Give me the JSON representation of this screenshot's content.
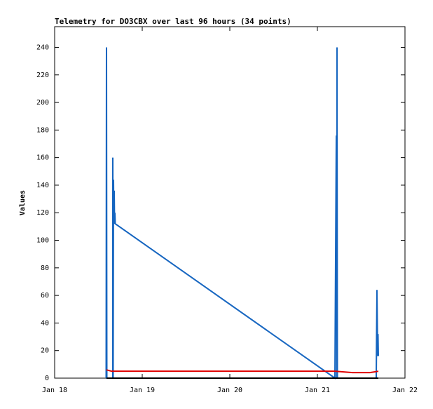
{
  "chart_data": {
    "type": "line",
    "title": "Telemetry for DO3CBX over last 96 hours (34 points)",
    "y_label": "Values",
    "xlim": [
      0,
      4
    ],
    "xticks": [
      {
        "value": 0,
        "label": "Jan 18"
      },
      {
        "value": 1,
        "label": "Jan 19"
      },
      {
        "value": 2,
        "label": "Jan 20"
      },
      {
        "value": 3,
        "label": "Jan 21"
      },
      {
        "value": 4,
        "label": "Jan 22"
      }
    ],
    "ylim": [
      0,
      255
    ],
    "yticks": [
      0,
      20,
      40,
      60,
      80,
      100,
      120,
      140,
      160,
      180,
      200,
      220,
      240
    ],
    "grid": false,
    "series": [
      {
        "color": "#1565c0",
        "x": [
          0.588,
          0.592,
          0.596,
          0.664,
          0.664,
          0.668,
          0.672,
          0.676,
          0.68,
          0.684,
          0.688,
          0.692,
          3.2,
          3.216,
          3.22,
          3.224,
          3.228,
          3.672,
          3.68,
          3.688,
          3.692,
          3.696
        ],
        "values": [
          0,
          240,
          0,
          0,
          160,
          0,
          144,
          112,
          136,
          112,
          120,
          112,
          0,
          176,
          0,
          240,
          0,
          0,
          64,
          16,
          32,
          16
        ]
      },
      {
        "color": "#e00000",
        "x": [
          0.592,
          0.65,
          3.2,
          3.4,
          3.6,
          3.696
        ],
        "values": [
          6,
          5,
          5,
          4,
          4,
          5
        ]
      },
      {
        "color": "#000000",
        "x": [
          0.592,
          3.696
        ],
        "values": [
          0,
          0
        ]
      }
    ]
  }
}
